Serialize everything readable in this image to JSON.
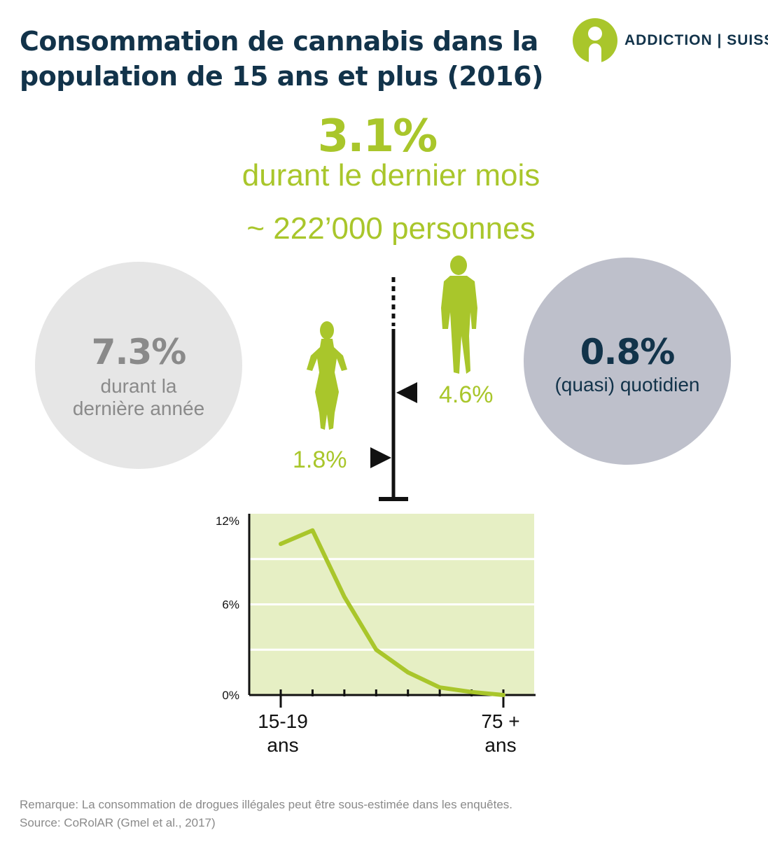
{
  "title": "Consommation de cannabis dans la population de 15 ans et plus (2016)",
  "logo": {
    "text": "ADDICTION | SUISSE",
    "icon": "person-icon"
  },
  "headline": {
    "value": "3.1%",
    "label": "durant le dernier mois",
    "people": "~ 222’000 personnes"
  },
  "left_circle": {
    "value": "7.3%",
    "label_line1": "durant la",
    "label_line2": "dernière année"
  },
  "right_circle": {
    "value": "0.8%",
    "label": "(quasi) quotidien"
  },
  "gender": {
    "women": "1.8%",
    "men": "4.6%",
    "women_icon": "woman-icon",
    "men_icon": "man-icon"
  },
  "colors": {
    "accent": "#a9c62b",
    "dark": "#12334a",
    "grey": "#8a8a8a",
    "chart_bg": "#e6efc4"
  },
  "chart_data": {
    "type": "line",
    "x": [
      1,
      2,
      3,
      4,
      5,
      6,
      7,
      8
    ],
    "values": [
      10.0,
      10.9,
      6.5,
      3.0,
      1.5,
      0.5,
      0.2,
      0.0
    ],
    "ylim": [
      0,
      12
    ],
    "yticks": [
      "12%",
      "6%",
      "0%"
    ],
    "xtick_first_line1": "15-19",
    "xtick_first_line2": "ans",
    "xtick_last_line1": "75 +",
    "xtick_last_line2": "ans",
    "grid": true
  },
  "footer": {
    "note": "Remarque: La consommation de drogues illégales peut être sous-estimée dans les enquêtes.",
    "source": "Source: CoRolAR (Gmel et al., 2017)"
  }
}
